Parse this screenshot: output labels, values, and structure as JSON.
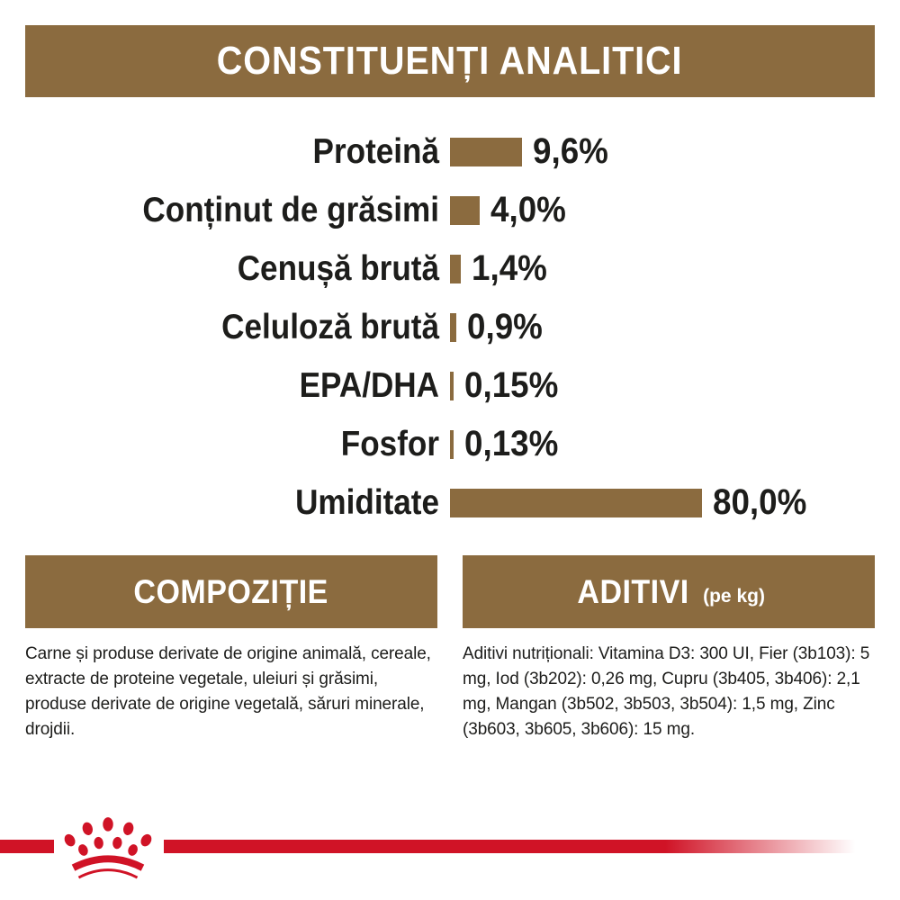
{
  "colors": {
    "brown": "#8B6B3F",
    "red": "#D01326",
    "text": "#1D1D1B",
    "header_text": "#FFFFFF",
    "background": "#FFFFFF"
  },
  "header": {
    "title": "CONSTITUENȚI ANALITICI"
  },
  "chart_data": {
    "type": "bar",
    "orientation": "horizontal",
    "title": "CONSTITUENȚI ANALITICI",
    "unit": "%",
    "xlim": [
      0,
      80
    ],
    "grid": false,
    "legend": false,
    "bar_color": "#8B6B3F",
    "categories": [
      "Proteină",
      "Conținut de grăsimi",
      "Cenușă brută",
      "Celuloză brută",
      "EPA/DHA",
      "Fosfor",
      "Umiditate"
    ],
    "values": [
      9.6,
      4.0,
      1.4,
      0.9,
      0.15,
      0.13,
      80.0
    ],
    "value_labels": [
      "9,6%",
      "4,0%",
      "1,4%",
      "0,9%",
      "0,15%",
      "0,13%",
      "80,0%"
    ]
  },
  "sections": {
    "composition": {
      "title": "COMPOZIȚIE",
      "body": "Carne și produse derivate de origine animală, cereale, extracte de proteine vegetale, uleiuri și grăsimi, produse derivate de origine vegetală, săruri minerale, drojdii."
    },
    "additives": {
      "title": "ADITIVI",
      "title_suffix": "(pe kg)",
      "body": "Aditivi nutriționali: Vitamina D3: 300 UI, Fier (3b103): 5 mg, Iod (3b202): 0,26 mg, Cupru (3b405, 3b406): 2,1 mg, Mangan (3b502, 3b503, 3b504): 1,5 mg, Zinc (3b603, 3b605, 3b606): 15 mg."
    }
  },
  "footer": {
    "logo_icon": "royal-canin-crown-icon"
  }
}
